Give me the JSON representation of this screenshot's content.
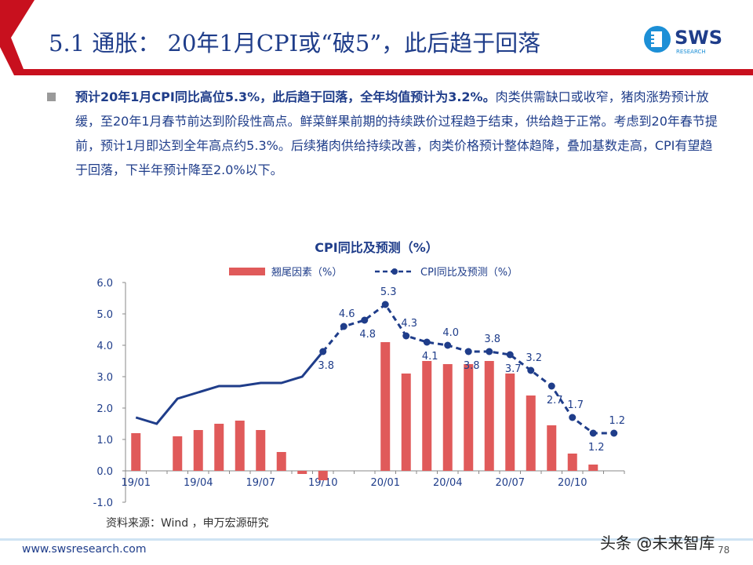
{
  "header": {
    "title": "5.1 通胀：  20年1月CPI或“破5”，此后趋于回落",
    "logo_text": "SWS",
    "logo_sub": "RESEARCH"
  },
  "body": {
    "bold": "预计20年1月CPI同比高位5.3%，此后趋于回落，全年均值预计为3.2%。",
    "text": "肉类供需缺口或收窄，猪肉涨势预计放缓，至20年1月春节前达到阶段性高点。鲜菜鲜果前期的持续跌价过程趋于结束，供给趋于正常。考虑到20年春节提前，预计1月即达到全年高点约5.3%。后续猪肉供给持续改善，肉类价格预计整体趋降，叠加基数走高，CPI有望趋于回落，下半年预计降至2.0%以下。"
  },
  "chart_data": {
    "type": "bar+line",
    "title": "CPI同比及预测（%）",
    "categories": [
      "19/01",
      "19/02",
      "19/03",
      "19/04",
      "19/05",
      "19/06",
      "19/07",
      "19/08",
      "19/09",
      "19/10",
      "19/11",
      "19/12",
      "20/01",
      "20/02",
      "20/03",
      "20/04",
      "20/05",
      "20/06",
      "20/07",
      "20/08",
      "20/09",
      "20/10",
      "20/11",
      "20/12"
    ],
    "tick_labels": [
      "19/01",
      "19/04",
      "19/07",
      "19/10",
      "20/01",
      "20/04",
      "20/07",
      "20/10"
    ],
    "ylim": [
      -1,
      6
    ],
    "yticks": [
      "-1.0",
      "0.0",
      "1.0",
      "2.0",
      "3.0",
      "4.0",
      "5.0",
      "6.0"
    ],
    "legend_position": "top",
    "series": [
      {
        "name": "翘尾因素（%）",
        "type": "bar",
        "color": "#e05a5a",
        "values": [
          1.2,
          0,
          1.1,
          1.3,
          1.5,
          1.6,
          1.3,
          0.6,
          -0.1,
          -0.3,
          0,
          0,
          4.1,
          3.1,
          3.5,
          3.4,
          3.4,
          3.5,
          3.1,
          2.4,
          1.45,
          0.55,
          0.2,
          0
        ]
      },
      {
        "name": "CPI同比及预测（%）",
        "type": "line",
        "color": "#1f3d8a",
        "actual_until": "19/10",
        "values": [
          1.7,
          1.5,
          2.3,
          2.5,
          2.7,
          2.7,
          2.8,
          2.8,
          3.0,
          3.8,
          4.6,
          4.8,
          5.3,
          4.3,
          4.1,
          4.0,
          3.8,
          3.8,
          3.7,
          3.2,
          2.7,
          1.7,
          1.2,
          1.2
        ],
        "data_labels": [
          null,
          null,
          null,
          null,
          null,
          null,
          null,
          null,
          null,
          "3.8",
          "4.6",
          "4.8",
          "5.3",
          "4.3",
          "4.1",
          "4.0",
          "3.8",
          "3.8",
          "3.7",
          "3.2",
          "2.7",
          "1.7",
          "1.2",
          "1.2"
        ],
        "label_side": [
          null,
          null,
          null,
          null,
          null,
          null,
          null,
          null,
          null,
          "below",
          "above",
          "below",
          "above",
          "above",
          "below",
          "above",
          "below",
          "above",
          "below",
          "above",
          "below",
          "above",
          "below",
          "above"
        ]
      }
    ]
  },
  "source": "资料来源：Wind ，申万宏源研究",
  "footer": {
    "url": "www.swsresearch.com",
    "page": "78",
    "watermark": "头条 @未来智库"
  }
}
